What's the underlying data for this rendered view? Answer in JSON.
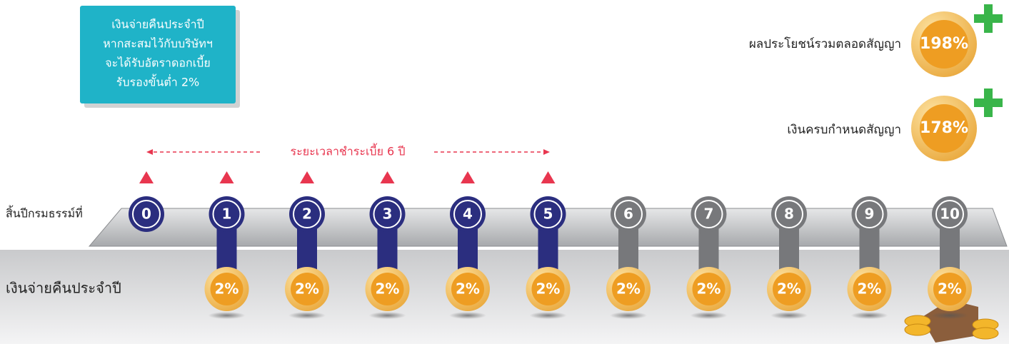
{
  "info_box": {
    "lines": [
      "เงินจ่ายคืนประจำปี",
      "หากสะสมไว้กับบริษัทฯ",
      "จะได้รับอัตราดอกเบี้ย",
      "รับรองขั้นต่ำ 2%"
    ]
  },
  "benefits": [
    {
      "label": "ผลประโยชน์รวมตลอดสัญญา",
      "value": "198%"
    },
    {
      "label": "เงินครบกำหนดสัญญา",
      "value": "178%"
    }
  ],
  "payment_period": "ระยะเวลาชำระเบี้ย 6 ปี",
  "timeline": {
    "label": "สิ้นปีกรมธรรม์ที่",
    "years": [
      {
        "label": "0",
        "color": "#2b2e7f"
      },
      {
        "label": "1",
        "color": "#2b2e7f"
      },
      {
        "label": "2",
        "color": "#2b2e7f"
      },
      {
        "label": "3",
        "color": "#2b2e7f"
      },
      {
        "label": "4",
        "color": "#2b2e7f"
      },
      {
        "label": "5",
        "color": "#2b2e7f"
      },
      {
        "label": "6",
        "color": "#77787b"
      },
      {
        "label": "7",
        "color": "#77787b"
      },
      {
        "label": "8",
        "color": "#77787b"
      },
      {
        "label": "9",
        "color": "#77787b"
      },
      {
        "label": "10",
        "color": "#77787b"
      }
    ]
  },
  "annual_payout": {
    "label": "เงินจ่ายคืนประจำปี",
    "values": [
      "2%",
      "2%",
      "2%",
      "2%",
      "2%",
      "2%",
      "2%",
      "2%",
      "2%",
      "2%"
    ]
  }
}
